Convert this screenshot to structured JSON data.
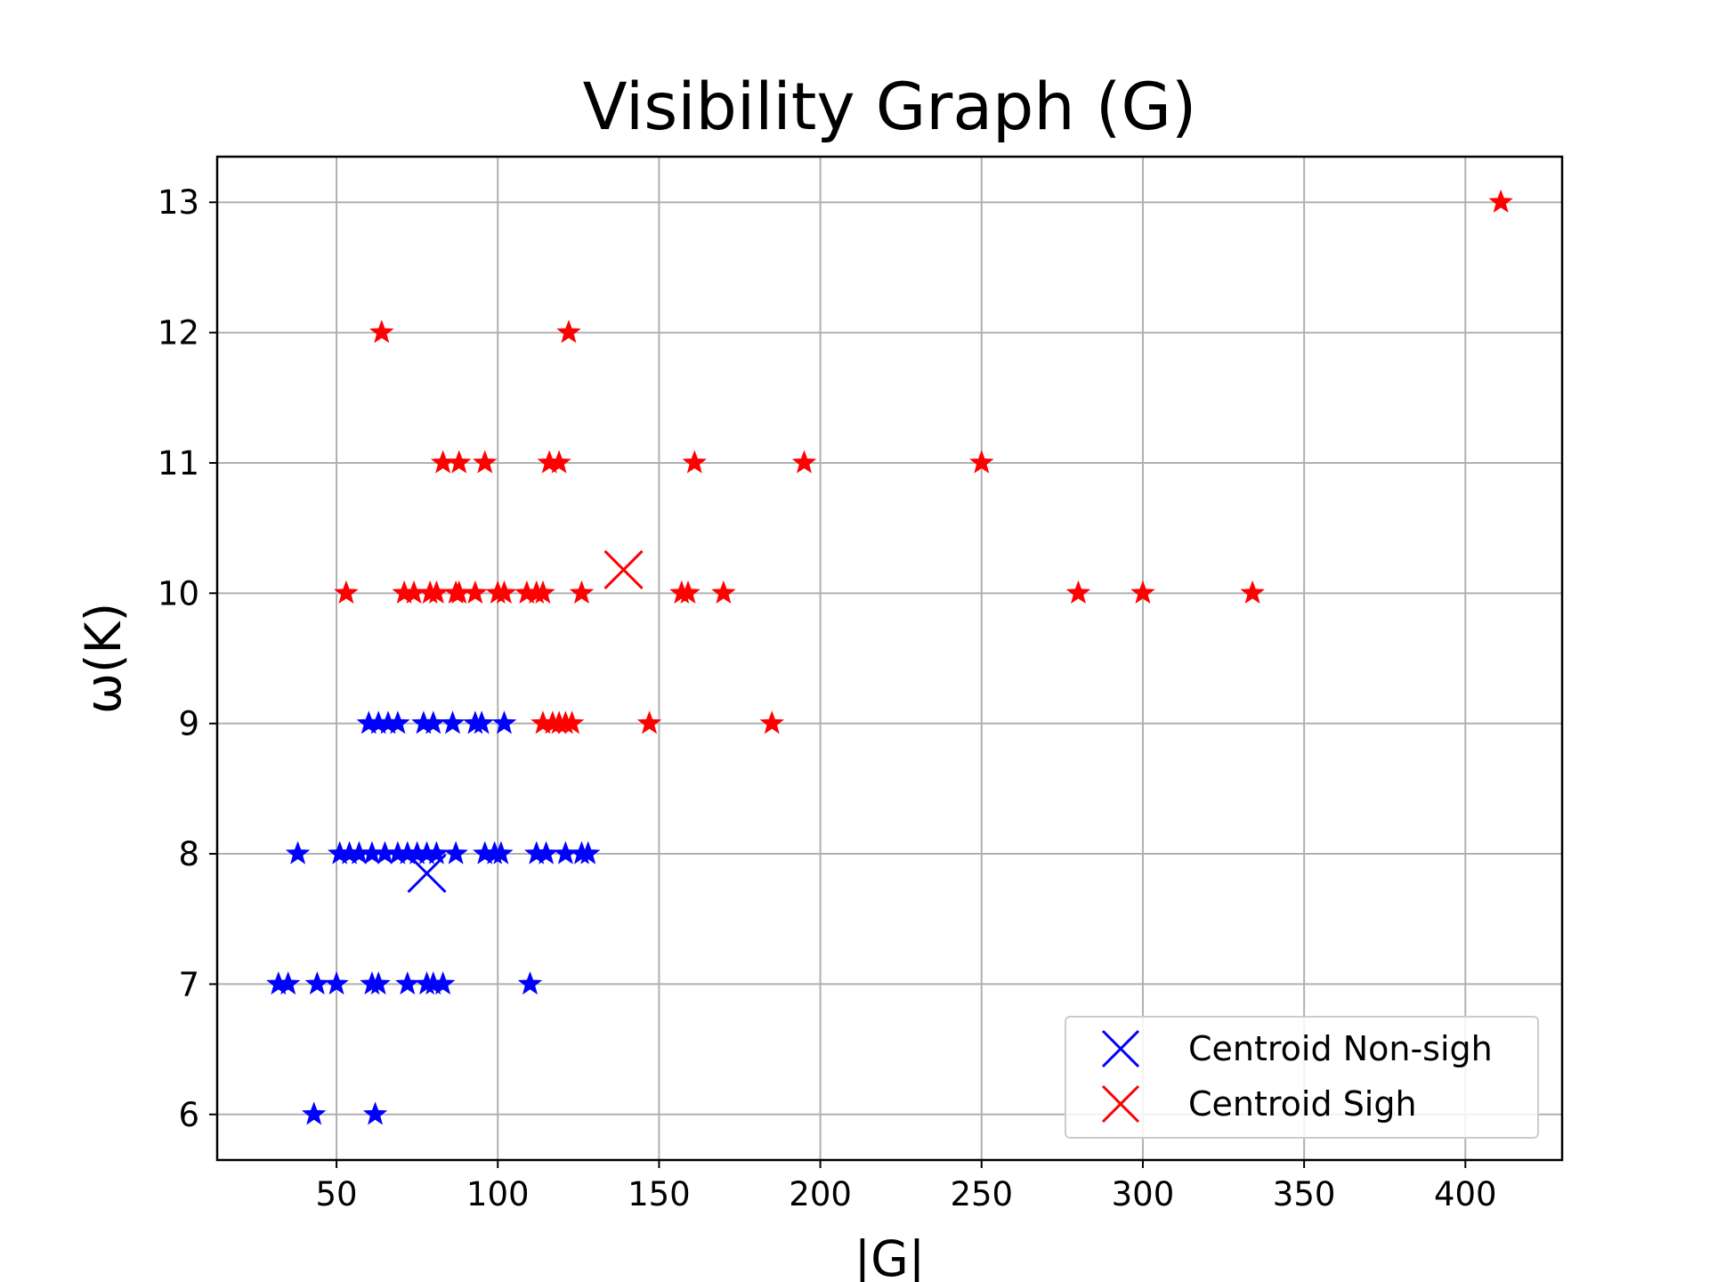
{
  "chart_data": {
    "type": "scatter",
    "title": "Visibility Graph (G)",
    "xlabel": "|G|",
    "ylabel": "ω(K)",
    "xlim": [
      13,
      430
    ],
    "ylim": [
      5.65,
      13.35
    ],
    "xticks": [
      50,
      100,
      150,
      200,
      250,
      300,
      350,
      400
    ],
    "yticks": [
      6,
      7,
      8,
      9,
      10,
      11,
      12,
      13
    ],
    "grid": true,
    "legend_position": "lower-right",
    "series": [
      {
        "name": "",
        "marker": "star",
        "color": "#0000ff",
        "x": [
          43,
          62,
          32,
          35,
          44,
          50,
          61,
          63,
          72,
          78,
          80,
          83,
          110,
          38,
          51,
          54,
          57,
          61,
          65,
          69,
          72,
          75,
          78,
          81,
          87,
          96,
          99,
          101,
          112,
          115,
          121,
          126,
          128,
          60,
          63,
          66,
          69,
          77,
          80,
          86,
          93,
          95,
          102
        ],
        "y": [
          6,
          6,
          7,
          7,
          7,
          7,
          7,
          7,
          7,
          7,
          7,
          7,
          7,
          8,
          8,
          8,
          8,
          8,
          8,
          8,
          8,
          8,
          8,
          8,
          8,
          8,
          8,
          8,
          8,
          8,
          8,
          8,
          8,
          9,
          9,
          9,
          9,
          9,
          9,
          9,
          9,
          9,
          9
        ]
      },
      {
        "name": "",
        "marker": "star",
        "color": "#ff0000",
        "x": [
          114,
          117,
          119,
          121,
          123,
          147,
          185,
          53,
          71,
          74,
          79,
          81,
          87,
          88,
          93,
          100,
          102,
          109,
          112,
          114,
          126,
          157,
          159,
          170,
          280,
          300,
          334,
          83,
          88,
          96,
          116,
          119,
          161,
          195,
          250,
          64,
          122,
          411
        ],
        "y": [
          9,
          9,
          9,
          9,
          9,
          9,
          9,
          10,
          10,
          10,
          10,
          10,
          10,
          10,
          10,
          10,
          10,
          10,
          10,
          10,
          10,
          10,
          10,
          10,
          10,
          10,
          10,
          11,
          11,
          11,
          11,
          11,
          11,
          11,
          11,
          12,
          12,
          13
        ]
      }
    ],
    "centroids": [
      {
        "name": "Centroid Non-sigh",
        "color": "#0000ff",
        "x": 78,
        "y": 7.85
      },
      {
        "name": "Centroid Sigh",
        "color": "#ff0000",
        "x": 139,
        "y": 10.18
      }
    ],
    "legend": [
      {
        "label": "Centroid Non-sigh",
        "color": "#0000ff",
        "marker": "x"
      },
      {
        "label": "Centroid Sigh",
        "color": "#ff0000",
        "marker": "x"
      }
    ]
  }
}
